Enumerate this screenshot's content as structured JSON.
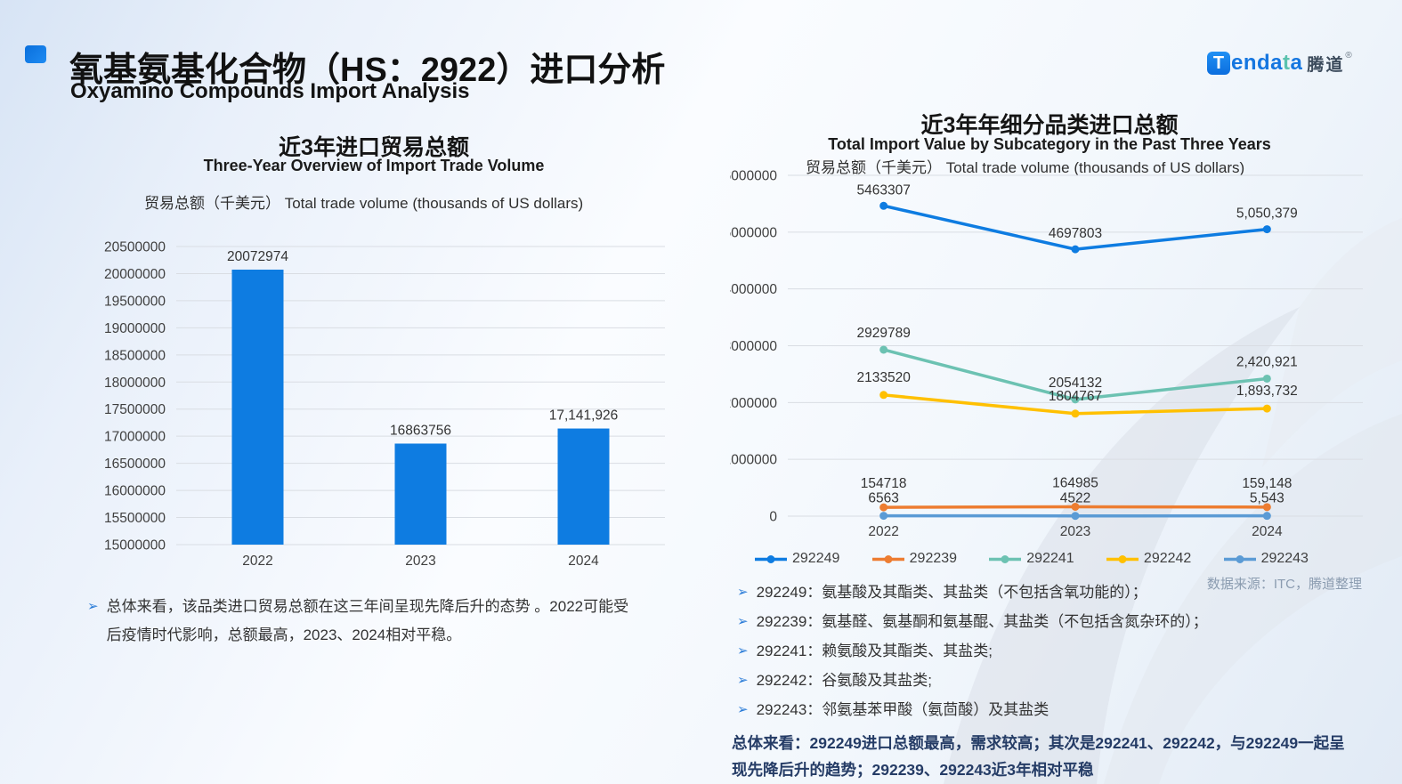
{
  "page": {
    "title_zh": "氧基氨基化合物（HS：2922）进口分析",
    "title_en": "Oxyamino Compounds Import Analysis"
  },
  "logo": {
    "badge_letter": "T",
    "word_part1": "enda",
    "word_part2": "t",
    "word_part3": "a",
    "suffix_cn": "腾道",
    "reg_mark": "®"
  },
  "left_panel": {
    "title_zh": "近3年进口贸易总额",
    "title_en": "Three-Year Overview of Import Trade Volume",
    "axis_caption": "贸易总额（千美元） Total trade volume (thousands of US dollars)",
    "note_arrow": "➢",
    "note_line1": "总体来看，该品类进口贸易总额在这三年间呈现先降后升的态势 。2022可能受",
    "note_line2": "后疫情时代影响，总额最高，2023、2024相对平稳。"
  },
  "right_panel": {
    "title_zh": "近3年年细分品类进口总额",
    "title_en": "Total Import Value by Subcategory in the Past Three Years",
    "axis_caption": "贸易总额（千美元） Total trade volume (thousands of US dollars)",
    "source": "数据来源：ITC，腾道整理",
    "bullet_arrow": "➢",
    "bullets": [
      "292249：氨基酸及其酯类、其盐类（不包括含氧功能的）；",
      "292239：氨基醛、氨基酮和氨基醌、其盐类（不包括含氮杂环的）；",
      "292241：赖氨酸及其酯类、其盐类;",
      "292242：谷氨酸及其盐类;",
      "292243：邻氨基苯甲酸（氨茴酸）及其盐类"
    ],
    "summary_line1": "总体来看：292249进口总额最高，需求较高；其次是292241、292242，与292249一起呈",
    "summary_line2": "现先降后升的趋势；292239、292243近3年相对平稳"
  },
  "colors": {
    "accent_blue": "#0e7ce1",
    "logo_blue": "#1576e0",
    "logo_teal": "#5bc2ae",
    "grid": "#d9dde3",
    "bullet_arrow_blue": "#2b7cd8",
    "summary_navy": "#253c66",
    "source_gray": "#8b9cb0"
  },
  "chart_data": [
    {
      "type": "bar",
      "title": "近3年进口贸易总额",
      "subtitle": "Three-Year Overview of Import Trade Volume",
      "ylabel": "贸易总额（千美元） Total trade volume (thousands of US dollars)",
      "categories": [
        "2022",
        "2023",
        "2024"
      ],
      "values": [
        20072974,
        16863756,
        17141926
      ],
      "labels": [
        "20072974",
        "16863756",
        "17,141,926"
      ],
      "ylim": [
        15000000,
        20500000
      ],
      "ytick_step": 500000,
      "grid": true,
      "bar_color": "#0e7ce1"
    },
    {
      "type": "line",
      "title": "近3年年细分品类进口总额",
      "subtitle": "Total Import Value by Subcategory in the Past Three Years",
      "ylabel": "贸易总额（千美元） Total trade volume (thousands of US dollars)",
      "categories": [
        "2022",
        "2023",
        "2024"
      ],
      "series": [
        {
          "name": "292249",
          "color": "#0e7ce1",
          "values": [
            5463307,
            4697803,
            5050379
          ],
          "labels": [
            "5463307",
            "4697803",
            "5,050,379"
          ]
        },
        {
          "name": "292239",
          "color": "#ed7d31",
          "values": [
            154718,
            164985,
            159148
          ],
          "labels": [
            "154718",
            "164985",
            "159,148"
          ]
        },
        {
          "name": "292241",
          "color": "#6cc2b2",
          "values": [
            2929789,
            2054132,
            2420921
          ],
          "labels": [
            "2929789",
            "2054132",
            "2,420,921"
          ]
        },
        {
          "name": "292242",
          "color": "#ffc000",
          "values": [
            2133520,
            1804767,
            1893732
          ],
          "labels": [
            "2133520",
            "1804767",
            "1,893,732"
          ]
        },
        {
          "name": "292243",
          "color": "#5b9bd5",
          "values": [
            6563,
            4522,
            5543
          ],
          "labels": [
            "6563",
            "4522",
            "5,543"
          ]
        }
      ],
      "ylim": [
        0,
        6000000
      ],
      "ytick_step": 1000000,
      "grid": true,
      "legend_position": "bottom",
      "source": "数据来源：ITC，腾道整理"
    }
  ]
}
